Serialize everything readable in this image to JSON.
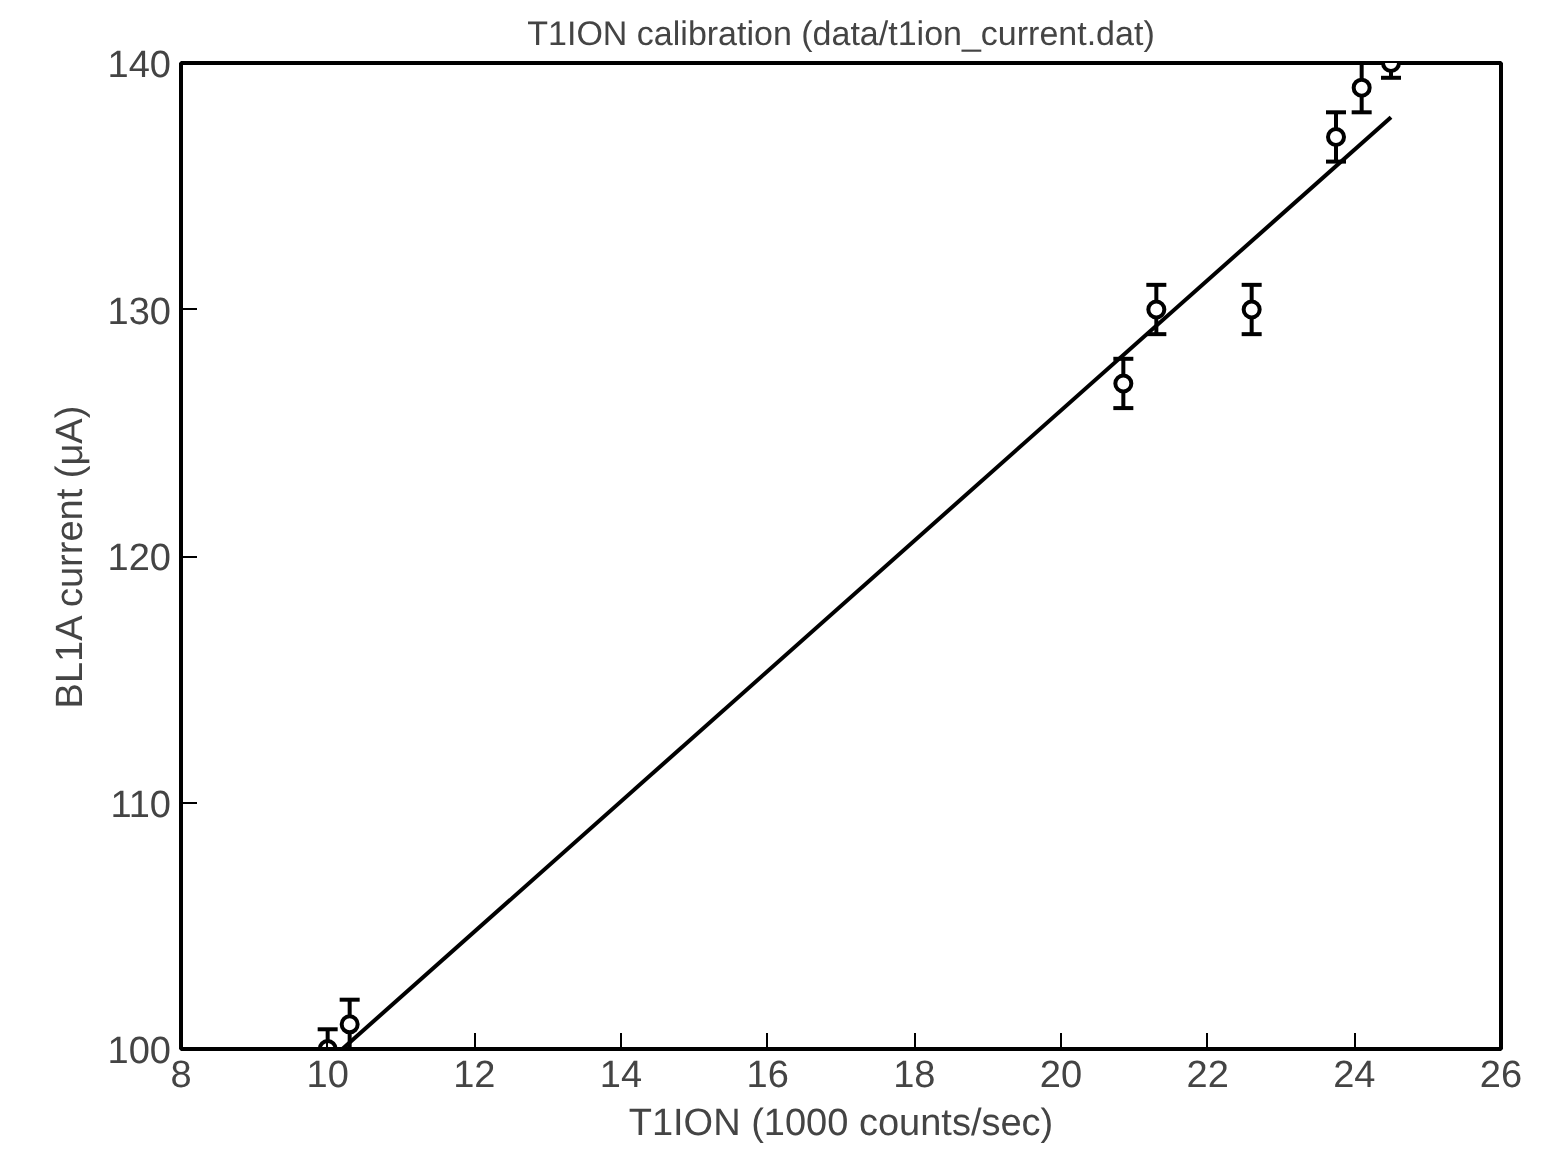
{
  "chart_data": {
    "type": "scatter",
    "title": "T1ION calibration (data/t1ion_current.dat)",
    "xlabel": "T1ION (1000 counts/sec)",
    "ylabel": "BL1A current (μA)",
    "xlim": [
      8,
      26
    ],
    "ylim": [
      100,
      140
    ],
    "xticks": [
      8,
      10,
      12,
      14,
      16,
      18,
      20,
      22,
      24,
      26
    ],
    "yticks": [
      100,
      110,
      120,
      130,
      140
    ],
    "grid": false,
    "series": [
      {
        "marker": "circle",
        "color": "#000000",
        "x": [
          10.0,
          10.3,
          20.85,
          21.3,
          22.6,
          23.75,
          24.1,
          24.5
        ],
        "values": [
          100,
          101,
          127,
          130,
          130,
          137,
          139,
          140
        ],
        "errors": [
          0.8,
          1,
          1,
          1,
          1,
          1,
          1,
          0.6
        ]
      },
      {
        "type": "line",
        "color": "#000000",
        "x": [
          10.2,
          24.5
        ],
        "values": [
          100,
          137.8
        ],
        "line_style": "solid"
      }
    ]
  }
}
